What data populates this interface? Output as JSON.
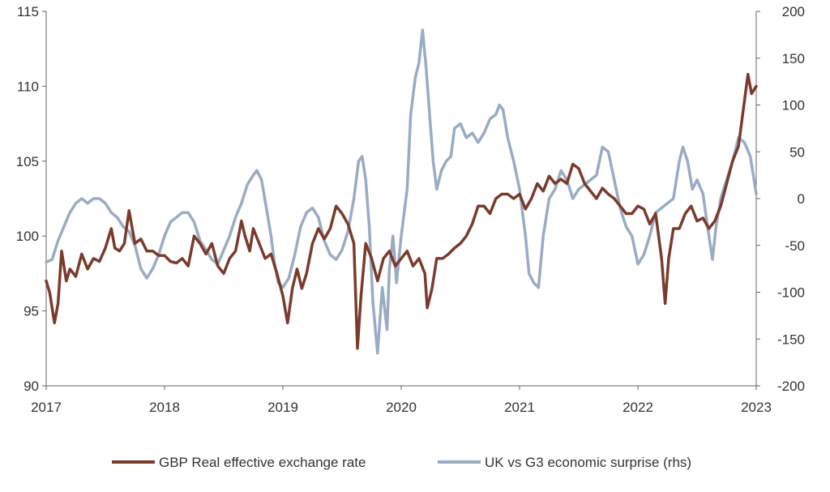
{
  "chart_data": {
    "type": "line",
    "x_ticks": [
      "2017",
      "2018",
      "2019",
      "2020",
      "2021",
      "2022",
      "2023"
    ],
    "x_range": [
      2017,
      2023
    ],
    "y_left_ticks": [
      "90",
      "95",
      "100",
      "105",
      "110",
      "115"
    ],
    "y_left_range": [
      90,
      115
    ],
    "y_right_ticks": [
      "-200",
      "-150",
      "-100",
      "-50",
      "0",
      "50",
      "100",
      "150",
      "200"
    ],
    "y_right_range": [
      -200,
      200
    ],
    "grid": false,
    "legend_position": "bottom",
    "series": [
      {
        "name": "GBP Real effective exchange rate",
        "axis": "left",
        "color": "#7b3b2c",
        "points": [
          [
            2017.0,
            97.0
          ],
          [
            2017.03,
            96.2
          ],
          [
            2017.07,
            94.2
          ],
          [
            2017.1,
            95.5
          ],
          [
            2017.13,
            99.0
          ],
          [
            2017.17,
            97.0
          ],
          [
            2017.2,
            97.8
          ],
          [
            2017.25,
            97.3
          ],
          [
            2017.3,
            98.8
          ],
          [
            2017.35,
            97.8
          ],
          [
            2017.4,
            98.5
          ],
          [
            2017.45,
            98.3
          ],
          [
            2017.5,
            99.2
          ],
          [
            2017.55,
            100.5
          ],
          [
            2017.58,
            99.2
          ],
          [
            2017.62,
            99.0
          ],
          [
            2017.66,
            99.5
          ],
          [
            2017.7,
            101.7
          ],
          [
            2017.75,
            99.5
          ],
          [
            2017.8,
            99.8
          ],
          [
            2017.85,
            99.0
          ],
          [
            2017.9,
            99.0
          ],
          [
            2017.95,
            98.7
          ],
          [
            2018.0,
            98.7
          ],
          [
            2018.05,
            98.3
          ],
          [
            2018.1,
            98.2
          ],
          [
            2018.15,
            98.5
          ],
          [
            2018.2,
            98.0
          ],
          [
            2018.25,
            100.0
          ],
          [
            2018.3,
            99.5
          ],
          [
            2018.35,
            98.8
          ],
          [
            2018.4,
            99.5
          ],
          [
            2018.45,
            98.0
          ],
          [
            2018.5,
            97.5
          ],
          [
            2018.55,
            98.5
          ],
          [
            2018.6,
            99.0
          ],
          [
            2018.65,
            101.0
          ],
          [
            2018.68,
            100.0
          ],
          [
            2018.72,
            99.0
          ],
          [
            2018.75,
            100.5
          ],
          [
            2018.8,
            99.5
          ],
          [
            2018.85,
            98.5
          ],
          [
            2018.9,
            98.8
          ],
          [
            2018.95,
            97.5
          ],
          [
            2019.0,
            96.0
          ],
          [
            2019.04,
            94.2
          ],
          [
            2019.08,
            96.5
          ],
          [
            2019.12,
            97.8
          ],
          [
            2019.16,
            96.5
          ],
          [
            2019.2,
            97.5
          ],
          [
            2019.25,
            99.5
          ],
          [
            2019.3,
            100.5
          ],
          [
            2019.35,
            99.8
          ],
          [
            2019.4,
            100.5
          ],
          [
            2019.45,
            102.0
          ],
          [
            2019.5,
            101.5
          ],
          [
            2019.55,
            100.8
          ],
          [
            2019.6,
            99.5
          ],
          [
            2019.63,
            92.5
          ],
          [
            2019.66,
            96.0
          ],
          [
            2019.7,
            99.5
          ],
          [
            2019.75,
            98.5
          ],
          [
            2019.8,
            97.0
          ],
          [
            2019.85,
            98.5
          ],
          [
            2019.9,
            99.0
          ],
          [
            2019.95,
            98.0
          ],
          [
            2020.0,
            98.5
          ],
          [
            2020.05,
            99.0
          ],
          [
            2020.1,
            98.0
          ],
          [
            2020.15,
            98.5
          ],
          [
            2020.2,
            97.5
          ],
          [
            2020.22,
            95.2
          ],
          [
            2020.26,
            96.5
          ],
          [
            2020.3,
            98.5
          ],
          [
            2020.35,
            98.5
          ],
          [
            2020.4,
            98.8
          ],
          [
            2020.45,
            99.2
          ],
          [
            2020.5,
            99.5
          ],
          [
            2020.55,
            100.0
          ],
          [
            2020.6,
            100.8
          ],
          [
            2020.65,
            102.0
          ],
          [
            2020.7,
            102.0
          ],
          [
            2020.75,
            101.5
          ],
          [
            2020.8,
            102.5
          ],
          [
            2020.85,
            102.8
          ],
          [
            2020.9,
            102.8
          ],
          [
            2020.95,
            102.5
          ],
          [
            2021.0,
            102.8
          ],
          [
            2021.05,
            101.8
          ],
          [
            2021.1,
            102.5
          ],
          [
            2021.15,
            103.5
          ],
          [
            2021.2,
            103.0
          ],
          [
            2021.25,
            104.0
          ],
          [
            2021.3,
            103.5
          ],
          [
            2021.35,
            103.8
          ],
          [
            2021.4,
            103.5
          ],
          [
            2021.45,
            104.8
          ],
          [
            2021.5,
            104.5
          ],
          [
            2021.55,
            103.5
          ],
          [
            2021.6,
            103.0
          ],
          [
            2021.65,
            102.5
          ],
          [
            2021.7,
            103.2
          ],
          [
            2021.75,
            102.8
          ],
          [
            2021.8,
            102.5
          ],
          [
            2021.85,
            102.0
          ],
          [
            2021.9,
            101.5
          ],
          [
            2021.95,
            101.5
          ],
          [
            2022.0,
            102.0
          ],
          [
            2022.05,
            101.8
          ],
          [
            2022.1,
            100.8
          ],
          [
            2022.15,
            101.5
          ],
          [
            2022.2,
            98.5
          ],
          [
            2022.23,
            95.5
          ],
          [
            2022.26,
            98.5
          ],
          [
            2022.3,
            100.5
          ],
          [
            2022.35,
            100.5
          ],
          [
            2022.4,
            101.5
          ],
          [
            2022.45,
            102.0
          ],
          [
            2022.5,
            101.0
          ],
          [
            2022.55,
            101.2
          ],
          [
            2022.6,
            100.5
          ],
          [
            2022.65,
            101.0
          ],
          [
            2022.7,
            102.0
          ],
          [
            2022.75,
            103.5
          ],
          [
            2022.8,
            105.0
          ],
          [
            2022.85,
            106.0
          ],
          [
            2022.9,
            109.0
          ],
          [
            2022.93,
            110.8
          ],
          [
            2022.96,
            109.5
          ],
          [
            2023.0,
            110.0
          ]
        ]
      },
      {
        "name": "UK vs G3 economic surprise (rhs)",
        "axis": "right",
        "color": "#9aabc4",
        "points": [
          [
            2017.0,
            -68
          ],
          [
            2017.05,
            -65
          ],
          [
            2017.1,
            -45
          ],
          [
            2017.15,
            -30
          ],
          [
            2017.2,
            -15
          ],
          [
            2017.25,
            -5
          ],
          [
            2017.3,
            0
          ],
          [
            2017.35,
            -5
          ],
          [
            2017.4,
            0
          ],
          [
            2017.45,
            0
          ],
          [
            2017.5,
            -5
          ],
          [
            2017.55,
            -15
          ],
          [
            2017.6,
            -20
          ],
          [
            2017.65,
            -30
          ],
          [
            2017.7,
            -35
          ],
          [
            2017.75,
            -50
          ],
          [
            2017.8,
            -75
          ],
          [
            2017.85,
            -85
          ],
          [
            2017.9,
            -75
          ],
          [
            2017.95,
            -60
          ],
          [
            2018.0,
            -40
          ],
          [
            2018.05,
            -25
          ],
          [
            2018.1,
            -20
          ],
          [
            2018.15,
            -15
          ],
          [
            2018.2,
            -15
          ],
          [
            2018.25,
            -25
          ],
          [
            2018.3,
            -45
          ],
          [
            2018.35,
            -55
          ],
          [
            2018.4,
            -65
          ],
          [
            2018.45,
            -70
          ],
          [
            2018.5,
            -55
          ],
          [
            2018.55,
            -40
          ],
          [
            2018.6,
            -20
          ],
          [
            2018.65,
            -5
          ],
          [
            2018.7,
            15
          ],
          [
            2018.75,
            25
          ],
          [
            2018.78,
            30
          ],
          [
            2018.82,
            20
          ],
          [
            2018.86,
            -10
          ],
          [
            2018.9,
            -40
          ],
          [
            2018.93,
            -70
          ],
          [
            2018.96,
            -90
          ],
          [
            2019.0,
            -95
          ],
          [
            2019.05,
            -85
          ],
          [
            2019.1,
            -60
          ],
          [
            2019.15,
            -30
          ],
          [
            2019.2,
            -15
          ],
          [
            2019.25,
            -10
          ],
          [
            2019.3,
            -20
          ],
          [
            2019.35,
            -45
          ],
          [
            2019.4,
            -60
          ],
          [
            2019.45,
            -65
          ],
          [
            2019.5,
            -55
          ],
          [
            2019.55,
            -35
          ],
          [
            2019.6,
            0
          ],
          [
            2019.64,
            40
          ],
          [
            2019.67,
            45
          ],
          [
            2019.7,
            20
          ],
          [
            2019.73,
            -30
          ],
          [
            2019.76,
            -110
          ],
          [
            2019.8,
            -165
          ],
          [
            2019.84,
            -95
          ],
          [
            2019.88,
            -140
          ],
          [
            2019.9,
            -75
          ],
          [
            2019.93,
            -40
          ],
          [
            2019.96,
            -90
          ],
          [
            2020.0,
            -40
          ],
          [
            2020.05,
            10
          ],
          [
            2020.08,
            90
          ],
          [
            2020.12,
            130
          ],
          [
            2020.15,
            145
          ],
          [
            2020.18,
            180
          ],
          [
            2020.21,
            140
          ],
          [
            2020.24,
            90
          ],
          [
            2020.27,
            40
          ],
          [
            2020.3,
            10
          ],
          [
            2020.34,
            30
          ],
          [
            2020.38,
            40
          ],
          [
            2020.42,
            45
          ],
          [
            2020.45,
            75
          ],
          [
            2020.5,
            80
          ],
          [
            2020.55,
            65
          ],
          [
            2020.6,
            70
          ],
          [
            2020.65,
            60
          ],
          [
            2020.7,
            70
          ],
          [
            2020.75,
            85
          ],
          [
            2020.8,
            90
          ],
          [
            2020.83,
            100
          ],
          [
            2020.86,
            95
          ],
          [
            2020.9,
            65
          ],
          [
            2020.95,
            40
          ],
          [
            2021.0,
            10
          ],
          [
            2021.05,
            -40
          ],
          [
            2021.08,
            -80
          ],
          [
            2021.12,
            -90
          ],
          [
            2021.16,
            -95
          ],
          [
            2021.2,
            -40
          ],
          [
            2021.25,
            0
          ],
          [
            2021.3,
            10
          ],
          [
            2021.35,
            30
          ],
          [
            2021.4,
            20
          ],
          [
            2021.45,
            0
          ],
          [
            2021.5,
            10
          ],
          [
            2021.55,
            15
          ],
          [
            2021.6,
            20
          ],
          [
            2021.65,
            25
          ],
          [
            2021.7,
            55
          ],
          [
            2021.75,
            50
          ],
          [
            2021.8,
            20
          ],
          [
            2021.85,
            -10
          ],
          [
            2021.9,
            -30
          ],
          [
            2021.95,
            -40
          ],
          [
            2022.0,
            -70
          ],
          [
            2022.05,
            -60
          ],
          [
            2022.1,
            -40
          ],
          [
            2022.15,
            -15
          ],
          [
            2022.2,
            -10
          ],
          [
            2022.25,
            -5
          ],
          [
            2022.3,
            0
          ],
          [
            2022.35,
            40
          ],
          [
            2022.38,
            55
          ],
          [
            2022.42,
            40
          ],
          [
            2022.46,
            10
          ],
          [
            2022.5,
            20
          ],
          [
            2022.55,
            5
          ],
          [
            2022.6,
            -40
          ],
          [
            2022.63,
            -65
          ],
          [
            2022.66,
            -30
          ],
          [
            2022.7,
            0
          ],
          [
            2022.75,
            20
          ],
          [
            2022.8,
            40
          ],
          [
            2022.85,
            65
          ],
          [
            2022.9,
            60
          ],
          [
            2022.95,
            45
          ],
          [
            2023.0,
            5
          ]
        ]
      }
    ]
  }
}
